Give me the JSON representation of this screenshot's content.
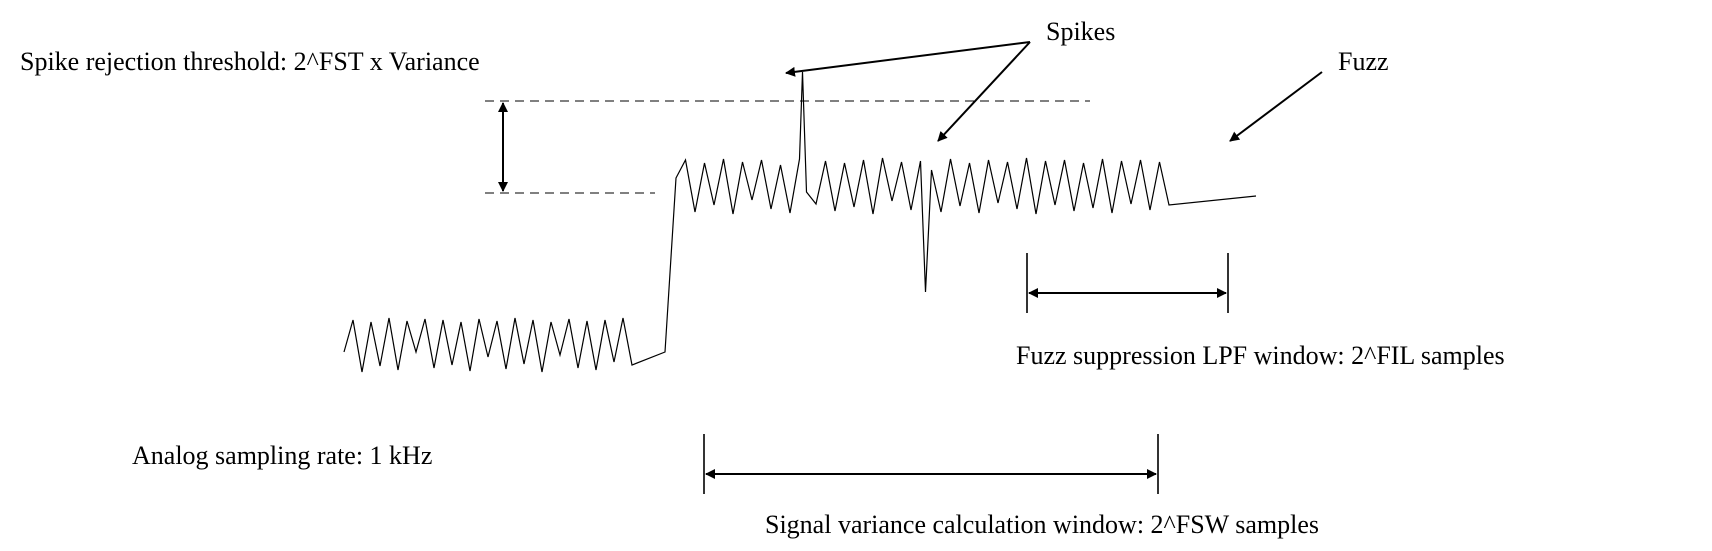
{
  "labels": {
    "spike_threshold": "Spike rejection threshold: 2^FST x Variance",
    "spikes": "Spikes",
    "fuzz": "Fuzz",
    "fuzz_window": "Fuzz suppression LPF window: 2^FIL samples",
    "sampling_rate": "Analog sampling rate: 1 kHz",
    "variance_window": "Signal variance calculation window: 2^FSW samples"
  },
  "colors": {
    "ink": "#000000",
    "background": "#ffffff"
  }
}
